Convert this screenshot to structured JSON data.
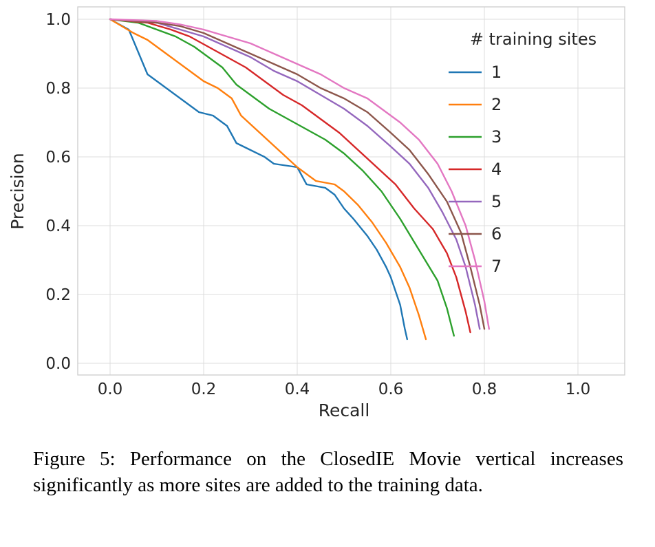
{
  "figure": {
    "caption": "Figure 5: Performance on the ClosedIE Movie vertical increases significantly as more sites are added to the training data."
  },
  "chart_data": {
    "type": "line",
    "title": "",
    "xlabel": "Recall",
    "ylabel": "Precision",
    "xlim": [
      0.0,
      1.0
    ],
    "ylim": [
      0.0,
      1.0
    ],
    "xticks": [
      0.0,
      0.2,
      0.4,
      0.6,
      0.8,
      1.0
    ],
    "yticks": [
      0.0,
      0.2,
      0.4,
      0.6,
      0.8,
      1.0
    ],
    "grid": true,
    "legend": {
      "title": "# training sites",
      "position": "upper right"
    },
    "colors": {
      "grid": "#dcdcdc",
      "spine": "#cccccc",
      "text": "#262626"
    },
    "series": [
      {
        "name": "1",
        "color": "#1f77b4",
        "points": [
          [
            0.0,
            1.0
          ],
          [
            0.04,
            0.97
          ],
          [
            0.08,
            0.84
          ],
          [
            0.1,
            0.82
          ],
          [
            0.13,
            0.79
          ],
          [
            0.16,
            0.76
          ],
          [
            0.19,
            0.73
          ],
          [
            0.22,
            0.72
          ],
          [
            0.25,
            0.69
          ],
          [
            0.27,
            0.64
          ],
          [
            0.3,
            0.62
          ],
          [
            0.33,
            0.6
          ],
          [
            0.35,
            0.58
          ],
          [
            0.4,
            0.57
          ],
          [
            0.42,
            0.52
          ],
          [
            0.46,
            0.51
          ],
          [
            0.48,
            0.49
          ],
          [
            0.5,
            0.45
          ],
          [
            0.52,
            0.42
          ],
          [
            0.55,
            0.37
          ],
          [
            0.57,
            0.33
          ],
          [
            0.59,
            0.28
          ],
          [
            0.6,
            0.25
          ],
          [
            0.62,
            0.17
          ],
          [
            0.63,
            0.1
          ],
          [
            0.635,
            0.07
          ]
        ]
      },
      {
        "name": "2",
        "color": "#ff7f0e",
        "points": [
          [
            0.0,
            1.0
          ],
          [
            0.05,
            0.96
          ],
          [
            0.08,
            0.94
          ],
          [
            0.12,
            0.9
          ],
          [
            0.16,
            0.86
          ],
          [
            0.2,
            0.82
          ],
          [
            0.23,
            0.8
          ],
          [
            0.26,
            0.77
          ],
          [
            0.28,
            0.72
          ],
          [
            0.32,
            0.67
          ],
          [
            0.36,
            0.62
          ],
          [
            0.4,
            0.57
          ],
          [
            0.44,
            0.53
          ],
          [
            0.48,
            0.52
          ],
          [
            0.5,
            0.5
          ],
          [
            0.53,
            0.46
          ],
          [
            0.56,
            0.41
          ],
          [
            0.59,
            0.35
          ],
          [
            0.62,
            0.28
          ],
          [
            0.64,
            0.22
          ],
          [
            0.66,
            0.14
          ],
          [
            0.675,
            0.07
          ]
        ]
      },
      {
        "name": "3",
        "color": "#2ca02c",
        "points": [
          [
            0.0,
            1.0
          ],
          [
            0.06,
            0.99
          ],
          [
            0.1,
            0.97
          ],
          [
            0.14,
            0.95
          ],
          [
            0.18,
            0.92
          ],
          [
            0.2,
            0.9
          ],
          [
            0.24,
            0.86
          ],
          [
            0.27,
            0.81
          ],
          [
            0.3,
            0.78
          ],
          [
            0.34,
            0.74
          ],
          [
            0.38,
            0.71
          ],
          [
            0.42,
            0.68
          ],
          [
            0.46,
            0.65
          ],
          [
            0.5,
            0.61
          ],
          [
            0.54,
            0.56
          ],
          [
            0.58,
            0.5
          ],
          [
            0.62,
            0.42
          ],
          [
            0.66,
            0.33
          ],
          [
            0.7,
            0.24
          ],
          [
            0.72,
            0.16
          ],
          [
            0.735,
            0.08
          ]
        ]
      },
      {
        "name": "4",
        "color": "#d62728",
        "points": [
          [
            0.0,
            1.0
          ],
          [
            0.08,
            0.99
          ],
          [
            0.13,
            0.97
          ],
          [
            0.17,
            0.95
          ],
          [
            0.21,
            0.92
          ],
          [
            0.25,
            0.89
          ],
          [
            0.29,
            0.86
          ],
          [
            0.33,
            0.82
          ],
          [
            0.37,
            0.78
          ],
          [
            0.41,
            0.75
          ],
          [
            0.45,
            0.71
          ],
          [
            0.49,
            0.67
          ],
          [
            0.53,
            0.62
          ],
          [
            0.57,
            0.57
          ],
          [
            0.61,
            0.52
          ],
          [
            0.65,
            0.45
          ],
          [
            0.69,
            0.39
          ],
          [
            0.72,
            0.32
          ],
          [
            0.74,
            0.25
          ],
          [
            0.76,
            0.15
          ],
          [
            0.77,
            0.09
          ]
        ]
      },
      {
        "name": "5",
        "color": "#9467bd",
        "points": [
          [
            0.0,
            1.0
          ],
          [
            0.1,
            0.99
          ],
          [
            0.15,
            0.97
          ],
          [
            0.2,
            0.95
          ],
          [
            0.25,
            0.92
          ],
          [
            0.3,
            0.89
          ],
          [
            0.35,
            0.85
          ],
          [
            0.4,
            0.82
          ],
          [
            0.45,
            0.78
          ],
          [
            0.5,
            0.74
          ],
          [
            0.55,
            0.69
          ],
          [
            0.6,
            0.63
          ],
          [
            0.64,
            0.58
          ],
          [
            0.68,
            0.51
          ],
          [
            0.71,
            0.44
          ],
          [
            0.74,
            0.36
          ],
          [
            0.76,
            0.28
          ],
          [
            0.78,
            0.17
          ],
          [
            0.79,
            0.1
          ]
        ]
      },
      {
        "name": "6",
        "color": "#8c564b",
        "points": [
          [
            0.0,
            1.0
          ],
          [
            0.1,
            0.99
          ],
          [
            0.15,
            0.98
          ],
          [
            0.2,
            0.96
          ],
          [
            0.25,
            0.93
          ],
          [
            0.3,
            0.9
          ],
          [
            0.35,
            0.87
          ],
          [
            0.4,
            0.84
          ],
          [
            0.45,
            0.8
          ],
          [
            0.5,
            0.77
          ],
          [
            0.55,
            0.73
          ],
          [
            0.6,
            0.67
          ],
          [
            0.64,
            0.62
          ],
          [
            0.68,
            0.55
          ],
          [
            0.72,
            0.47
          ],
          [
            0.75,
            0.38
          ],
          [
            0.77,
            0.28
          ],
          [
            0.79,
            0.17
          ],
          [
            0.8,
            0.1
          ]
        ]
      },
      {
        "name": "7",
        "color": "#e377c2",
        "points": [
          [
            0.0,
            1.0
          ],
          [
            0.1,
            0.995
          ],
          [
            0.15,
            0.985
          ],
          [
            0.2,
            0.97
          ],
          [
            0.25,
            0.95
          ],
          [
            0.3,
            0.93
          ],
          [
            0.35,
            0.9
          ],
          [
            0.4,
            0.87
          ],
          [
            0.45,
            0.84
          ],
          [
            0.5,
            0.8
          ],
          [
            0.55,
            0.77
          ],
          [
            0.58,
            0.74
          ],
          [
            0.62,
            0.7
          ],
          [
            0.66,
            0.65
          ],
          [
            0.7,
            0.58
          ],
          [
            0.73,
            0.5
          ],
          [
            0.76,
            0.4
          ],
          [
            0.78,
            0.3
          ],
          [
            0.8,
            0.18
          ],
          [
            0.81,
            0.1
          ]
        ]
      }
    ]
  }
}
